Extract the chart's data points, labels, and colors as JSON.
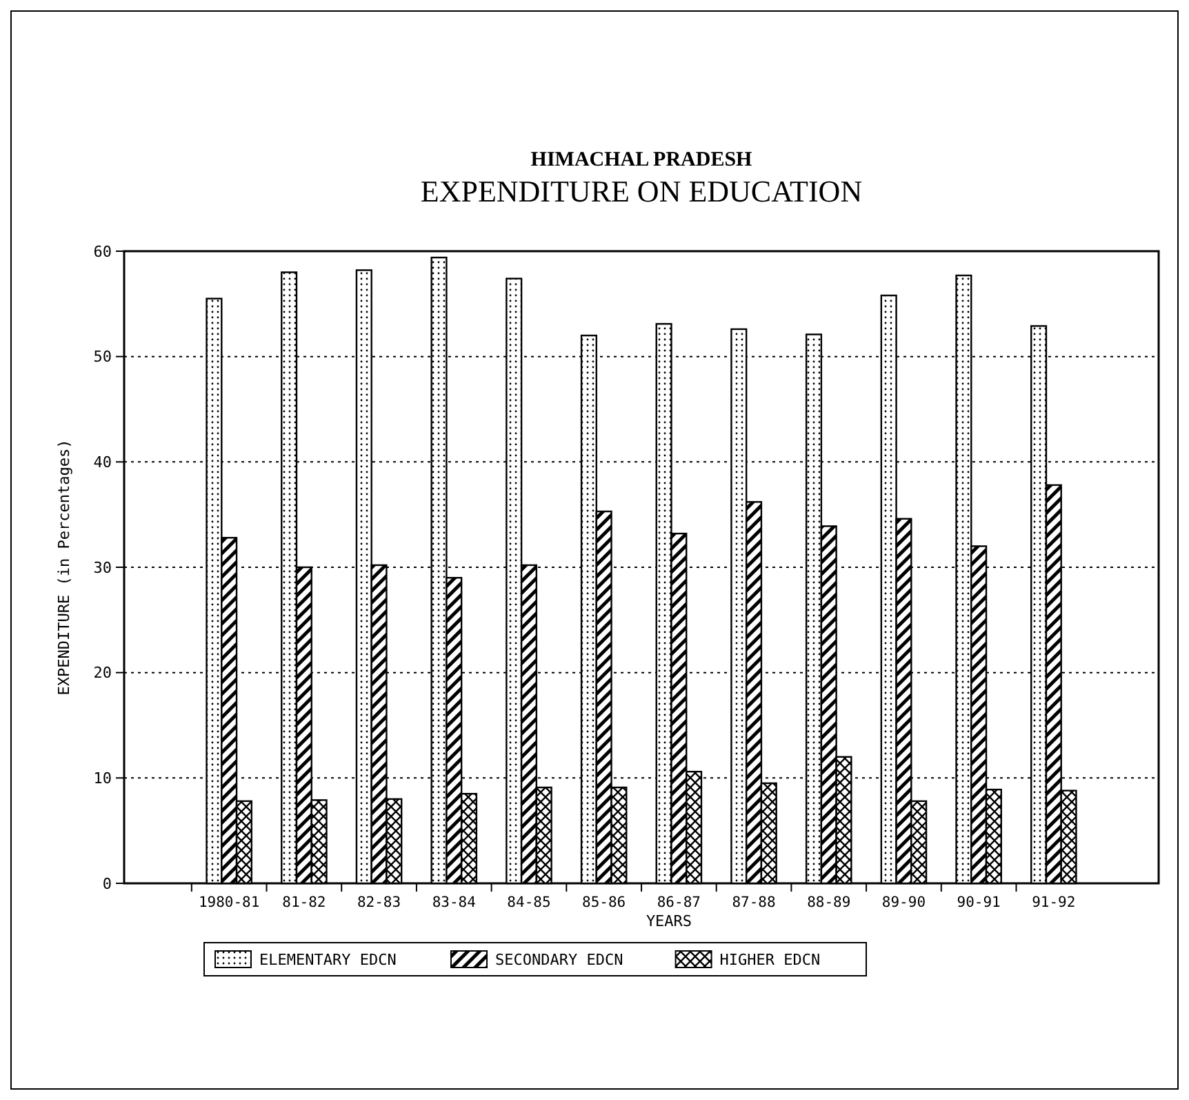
{
  "chart_data": {
    "type": "bar",
    "title": "HIMACHAL PRADESH",
    "subtitle": "EXPENDITURE ON EDUCATION",
    "xlabel": "YEARS",
    "ylabel": "EXPENDITURE (in Percentages)",
    "categories": [
      "1980-81",
      "81-82",
      "82-83",
      "83-84",
      "84-85",
      "85-86",
      "86-87",
      "87-88",
      "88-89",
      "89-90",
      "90-91",
      "91-92"
    ],
    "series": [
      {
        "name": "ELEMENTARY EDCN",
        "color": "#000000",
        "values": [
          55.5,
          58,
          58.2,
          59.4,
          57.4,
          52,
          53.1,
          52.6,
          52.1,
          55.8,
          57.7,
          52.9
        ]
      },
      {
        "name": "SECONDARY EDCN",
        "color": "#000000",
        "values": [
          32.8,
          30,
          30.2,
          29,
          30.2,
          35.3,
          33.2,
          36.2,
          33.9,
          34.6,
          32,
          37.8
        ]
      },
      {
        "name": "HIGHER EDCN",
        "color": "#000000",
        "values": [
          7.8,
          7.9,
          8,
          8.5,
          9.1,
          9.1,
          10.6,
          9.5,
          12,
          7.8,
          8.9,
          8.8
        ]
      }
    ],
    "ylim": [
      0,
      60
    ],
    "yticks": [
      0,
      10,
      20,
      30,
      40,
      50,
      60
    ],
    "grid": "y",
    "legend": "bottom"
  }
}
